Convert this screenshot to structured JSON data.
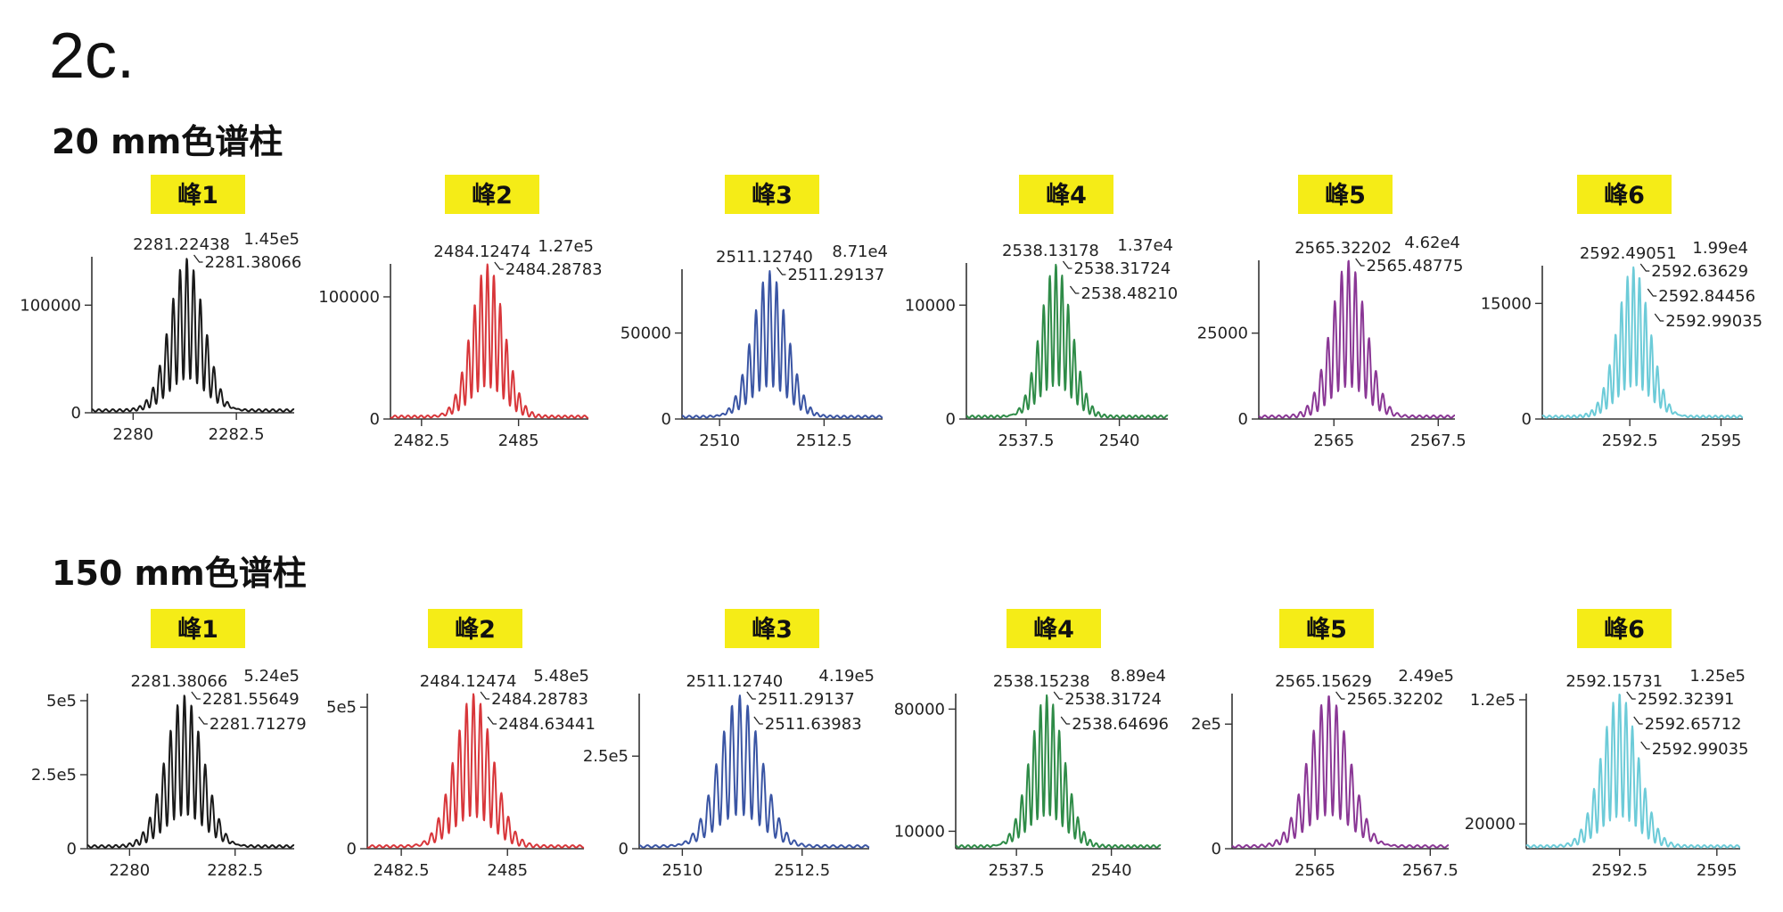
{
  "figure_label": "2c.",
  "chart_data": [
    {
      "type": "line",
      "section": "20 mm色谱柱",
      "panel_label": "峰1",
      "color": "#1a1a1a",
      "xlim": [
        2279.0,
        2283.9
      ],
      "ylim": [
        0,
        145000
      ],
      "center": 2281.3,
      "width": 0.42,
      "xticks": [
        2280,
        2282.5
      ],
      "xtick_labels": [
        "2280",
        "2282.5"
      ],
      "yticks": [
        0,
        100000
      ],
      "ytick_labels": [
        "0",
        "100000"
      ],
      "intensity_label": "1.45e5",
      "annotations": [
        "2281.22438",
        "2281.38066"
      ]
    },
    {
      "type": "line",
      "section": "20 mm色谱柱",
      "panel_label": "峰2",
      "color": "#d8363a",
      "xlim": [
        2481.7,
        2486.8
      ],
      "ylim": [
        0,
        127000
      ],
      "center": 2484.2,
      "width": 0.42,
      "xticks": [
        2482.5,
        2485
      ],
      "xtick_labels": [
        "2482.5",
        "2485"
      ],
      "yticks": [
        0,
        100000
      ],
      "ytick_labels": [
        "0",
        "100000"
      ],
      "intensity_label": "1.27e5",
      "annotations": [
        "2484.12474",
        "2484.28783"
      ]
    },
    {
      "type": "line",
      "section": "20 mm色谱柱",
      "panel_label": "峰3",
      "color": "#3a55a4",
      "xlim": [
        2509.1,
        2513.9
      ],
      "ylim": [
        0,
        87100
      ],
      "center": 2511.2,
      "width": 0.42,
      "xticks": [
        2510,
        2512.5
      ],
      "xtick_labels": [
        "2510",
        "2512.5"
      ],
      "yticks": [
        0,
        50000
      ],
      "ytick_labels": [
        "0",
        "50000"
      ],
      "intensity_label": "8.71e4",
      "annotations": [
        "2511.12740",
        "2511.29137"
      ]
    },
    {
      "type": "line",
      "section": "20 mm色谱柱",
      "panel_label": "峰4",
      "color": "#2e8b47",
      "xlim": [
        2535.9,
        2541.3
      ],
      "ylim": [
        0,
        13700
      ],
      "center": 2538.3,
      "width": 0.42,
      "xticks": [
        2537.5,
        2540
      ],
      "xtick_labels": [
        "2537.5",
        "2540"
      ],
      "yticks": [
        0,
        10000
      ],
      "ytick_labels": [
        "0",
        "10000"
      ],
      "intensity_label": "1.37e4",
      "annotations": [
        "2538.13178",
        "2538.31724",
        "2538.48210"
      ]
    },
    {
      "type": "line",
      "section": "20 mm色谱柱",
      "panel_label": "峰5",
      "color": "#8a3795",
      "xlim": [
        2563.2,
        2567.9
      ],
      "ylim": [
        0,
        46200
      ],
      "center": 2565.35,
      "width": 0.42,
      "xticks": [
        2565,
        2567.5
      ],
      "xtick_labels": [
        "2565",
        "2567.5"
      ],
      "yticks": [
        0,
        25000
      ],
      "ytick_labels": [
        "0",
        "25000"
      ],
      "intensity_label": "4.62e4",
      "annotations": [
        "2565.32202",
        "2565.48775"
      ]
    },
    {
      "type": "line",
      "section": "20 mm色谱柱",
      "panel_label": "峰6",
      "color": "#6ccbd8",
      "xlim": [
        2590.1,
        2595.6
      ],
      "ylim": [
        0,
        19900
      ],
      "center": 2592.6,
      "width": 0.45,
      "xticks": [
        2592.5,
        2595
      ],
      "xtick_labels": [
        "2592.5",
        "2595"
      ],
      "yticks": [
        0,
        15000
      ],
      "ytick_labels": [
        "0",
        "15000"
      ],
      "intensity_label": "1.99e4",
      "annotations": [
        "2592.49051",
        "2592.63629",
        "2592.84456",
        "2592.99035"
      ]
    },
    {
      "type": "line",
      "section": "150 mm色谱柱",
      "panel_label": "峰1",
      "color": "#1a1a1a",
      "xlim": [
        2279.0,
        2283.9
      ],
      "ylim": [
        0,
        524000
      ],
      "center": 2281.3,
      "width": 0.45,
      "xticks": [
        2280,
        2282.5
      ],
      "xtick_labels": [
        "2280",
        "2282.5"
      ],
      "yticks": [
        0,
        250000,
        500000
      ],
      "ytick_labels": [
        "0",
        "2.5e5",
        "5e5"
      ],
      "intensity_label": "5.24e5",
      "annotations": [
        "2281.38066",
        "2281.55649",
        "2281.71279"
      ]
    },
    {
      "type": "line",
      "section": "150 mm色谱柱",
      "panel_label": "峰2",
      "color": "#d8363a",
      "xlim": [
        2481.7,
        2486.8
      ],
      "ylim": [
        0,
        548000
      ],
      "center": 2484.2,
      "width": 0.45,
      "xticks": [
        2482.5,
        2485
      ],
      "xtick_labels": [
        "2482.5",
        "2485"
      ],
      "yticks": [
        0,
        500000
      ],
      "ytick_labels": [
        "0",
        "5e5"
      ],
      "intensity_label": "5.48e5",
      "annotations": [
        "2484.12474",
        "2484.28783",
        "2484.63441"
      ]
    },
    {
      "type": "line",
      "section": "150 mm色谱柱",
      "panel_label": "峰3",
      "color": "#3a55a4",
      "xlim": [
        2509.1,
        2513.9
      ],
      "ylim": [
        0,
        419000
      ],
      "center": 2511.2,
      "width": 0.45,
      "xticks": [
        2510,
        2512.5
      ],
      "xtick_labels": [
        "2510",
        "2512.5"
      ],
      "yticks": [
        0,
        250000
      ],
      "ytick_labels": [
        "0",
        "2.5e5"
      ],
      "intensity_label": "4.19e5",
      "annotations": [
        "2511.12740",
        "2511.29137",
        "2511.63983"
      ]
    },
    {
      "type": "line",
      "section": "150 mm色谱柱",
      "panel_label": "峰4",
      "color": "#2e8b47",
      "xlim": [
        2535.9,
        2541.3
      ],
      "ylim": [
        0,
        88900
      ],
      "center": 2538.3,
      "width": 0.45,
      "xticks": [
        2537.5,
        2540
      ],
      "xtick_labels": [
        "2537.5",
        "2540"
      ],
      "yticks": [
        10000,
        80000
      ],
      "ytick_labels": [
        "10000",
        "80000"
      ],
      "intensity_label": "8.89e4",
      "annotations": [
        "2538.15238",
        "2538.31724",
        "2538.64696"
      ]
    },
    {
      "type": "line",
      "section": "150 mm色谱柱",
      "panel_label": "峰5",
      "color": "#8a3795",
      "xlim": [
        2563.2,
        2567.9
      ],
      "ylim": [
        0,
        249000
      ],
      "center": 2565.3,
      "width": 0.45,
      "xticks": [
        2565,
        2567.5
      ],
      "xtick_labels": [
        "2565",
        "2567.5"
      ],
      "yticks": [
        0,
        200000
      ],
      "ytick_labels": [
        "0",
        "2e5"
      ],
      "intensity_label": "2.49e5",
      "annotations": [
        "2565.15629",
        "2565.32202"
      ]
    },
    {
      "type": "line",
      "section": "150 mm色谱柱",
      "panel_label": "峰6",
      "color": "#6ccbd8",
      "xlim": [
        2590.1,
        2595.6
      ],
      "ylim": [
        0,
        125000
      ],
      "center": 2592.5,
      "width": 0.47,
      "xticks": [
        2592.5,
        2595
      ],
      "xtick_labels": [
        "2592.5",
        "2595"
      ],
      "yticks": [
        20000,
        120000
      ],
      "ytick_labels": [
        "20000",
        "1.2e5"
      ],
      "intensity_label": "1.25e5",
      "annotations": [
        "2592.15731",
        "2592.32391",
        "2592.65712",
        "2592.99035"
      ]
    }
  ]
}
